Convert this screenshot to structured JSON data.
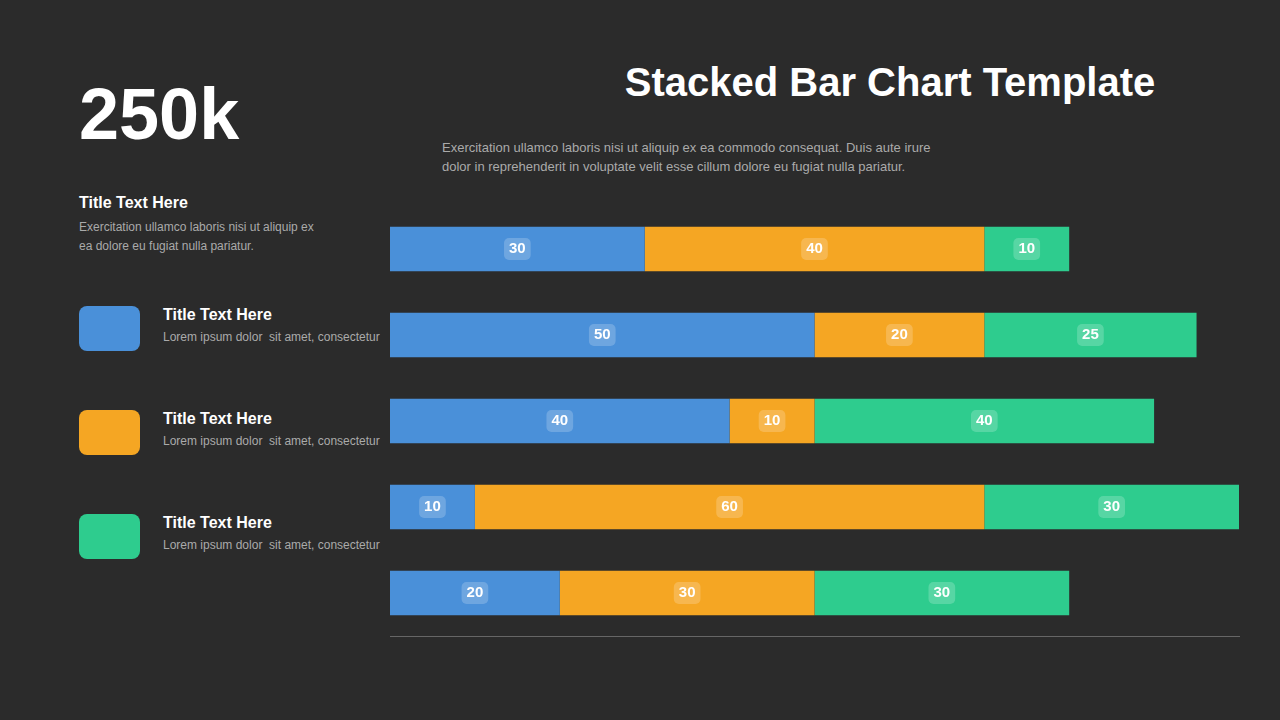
{
  "chart_data": {
    "type": "bar",
    "orientation": "horizontal",
    "stacked": true,
    "data_labels": true,
    "title": "Stacked Bar Chart Template",
    "subtitle": [
      "Exercitation ullamco laboris nisi ut aliquip ex ea commodo consequat. Duis aute irure",
      "dolor in reprehenderit in voluptate velit esse cillum dolore eu fugiat nulla pariatur."
    ],
    "annotations": [
      "250k",
      "Title Text Here",
      "Exercitation ullamco laboris nisi ut aliquip ex",
      "ea dolore eu fugiat nulla pariatur."
    ],
    "categories": [
      null,
      null,
      null,
      null,
      null
    ],
    "series": [
      {
        "name": "Title Text Here",
        "description": "Lorem ipsum dolor  sit amet, consectetur",
        "color": "#4a90d9",
        "values": [
          30,
          50,
          40,
          10,
          20
        ]
      },
      {
        "name": "Title Text Here",
        "description": "Lorem ipsum dolor  sit amet, consectetur",
        "color": "#f5a623",
        "values": [
          40,
          20,
          10,
          60,
          30
        ]
      },
      {
        "name": "Title Text Here",
        "description": "Lorem ipsum dolor  sit amet, consectetur",
        "color": "#2ecc8e",
        "values": [
          10,
          25,
          40,
          30,
          30
        ]
      }
    ],
    "xlim": [
      0,
      100
    ],
    "grid": false,
    "legend": "left",
    "tick_labels": false
  }
}
